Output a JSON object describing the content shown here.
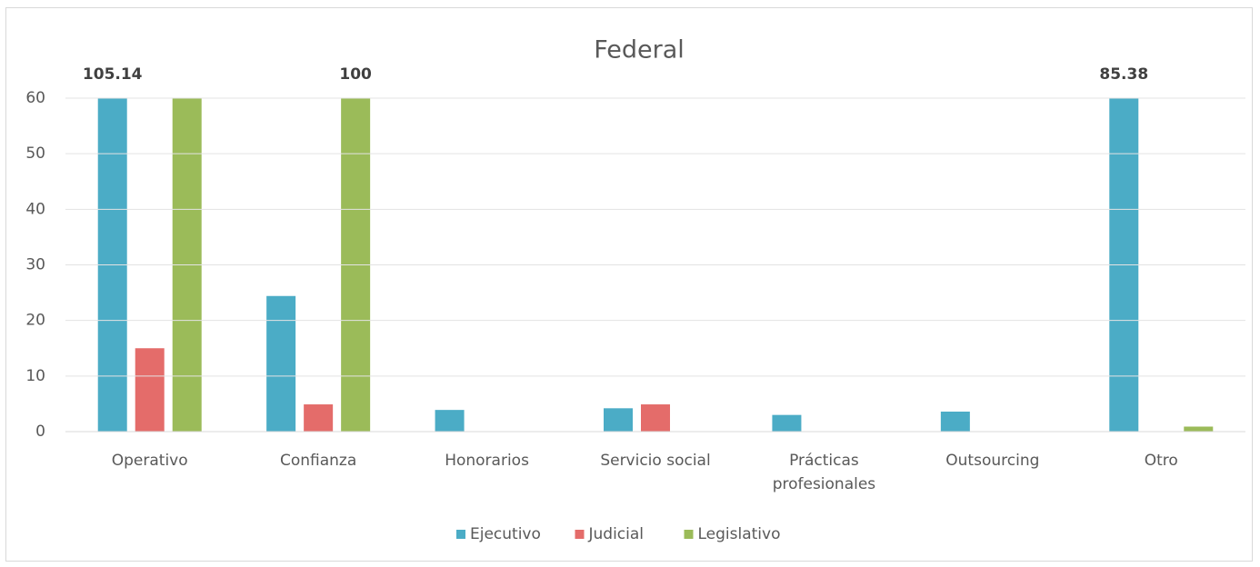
{
  "chart_data": {
    "type": "bar",
    "title": "Federal",
    "categories": [
      "Operativo",
      "Confianza",
      "Honorarios",
      "Servicio social",
      "Prácticas profesionales",
      "Outsourcing",
      "Otro"
    ],
    "series": [
      {
        "name": "Ejecutivo",
        "color": "#4bacc6",
        "values": [
          105.14,
          24.4,
          3.9,
          4.2,
          3.0,
          3.6,
          85.38
        ],
        "value_labels": [
          "105.14",
          null,
          null,
          null,
          null,
          null,
          "85.38"
        ]
      },
      {
        "name": "Judicial",
        "color": "#e46c6a",
        "values": [
          15,
          4.9,
          0,
          4.9,
          0,
          0,
          0
        ]
      },
      {
        "name": "Legislativo",
        "color": "#9bbb59",
        "values": [
          60,
          100,
          0,
          0,
          0,
          0,
          0.9
        ],
        "value_labels": [
          null,
          "100",
          null,
          null,
          null,
          null,
          null
        ]
      }
    ],
    "ylim": [
      0,
      60
    ],
    "yticks": [
      0,
      10,
      20,
      30,
      40,
      50,
      60
    ],
    "grid": true,
    "legend": "bottom"
  }
}
